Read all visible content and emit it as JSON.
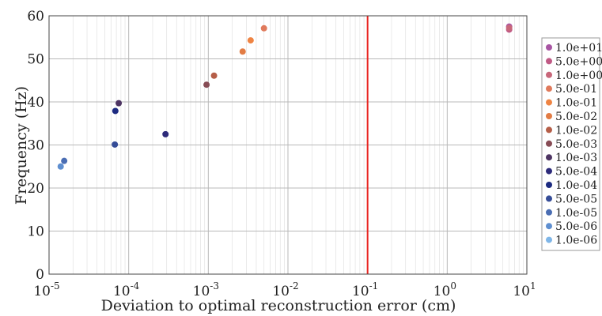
{
  "chart_data": {
    "type": "scatter",
    "xscale": "log",
    "xlabel": "Deviation to optimal reconstruction  error (cm)",
    "ylabel": "Frequency (Hz)",
    "xlim": [
      1e-05,
      10
    ],
    "ylim": [
      0,
      60
    ],
    "grid": true,
    "legend_position": "right",
    "x_ticks": [
      {
        "base": "10",
        "exp": "-5",
        "value": 1e-05
      },
      {
        "base": "10",
        "exp": "-4",
        "value": 0.0001
      },
      {
        "base": "10",
        "exp": "-3",
        "value": 0.001
      },
      {
        "base": "10",
        "exp": "-2",
        "value": 0.01
      },
      {
        "base": "10",
        "exp": "-1",
        "value": 0.1
      },
      {
        "base": "10",
        "exp": "0",
        "value": 1
      },
      {
        "base": "10",
        "exp": "1",
        "value": 10
      }
    ],
    "y_ticks": [
      "0",
      "10",
      "20",
      "30",
      "40",
      "50",
      "60"
    ],
    "reference_line": {
      "x": 0.1,
      "color": "#e8231f"
    },
    "series": [
      {
        "name": "1.0e+01",
        "color": "#a855a3",
        "points": [
          [
            6.0,
            57.5
          ]
        ]
      },
      {
        "name": "5.0e+00",
        "color": "#c05a85",
        "points": [
          [
            6.0,
            56.8
          ]
        ]
      },
      {
        "name": "1.0e+00",
        "color": "#c8677a",
        "points": [
          [
            6.0,
            57.2
          ]
        ]
      },
      {
        "name": "5.0e-01",
        "color": "#e07a5c",
        "points": [
          [
            0.005,
            57.1
          ]
        ]
      },
      {
        "name": "1.0e-01",
        "color": "#ef8443",
        "points": [
          [
            0.0034,
            54.3
          ]
        ]
      },
      {
        "name": "5.0e-02",
        "color": "#e27c44",
        "points": [
          [
            0.0027,
            51.7
          ]
        ]
      },
      {
        "name": "1.0e-02",
        "color": "#b55e48",
        "points": [
          [
            0.00118,
            46.1
          ]
        ]
      },
      {
        "name": "5.0e-03",
        "color": "#874c55",
        "points": [
          [
            0.00095,
            44.0
          ]
        ]
      },
      {
        "name": "1.0e-03",
        "color": "#4d3462",
        "points": [
          [
            7.5e-05,
            39.7
          ]
        ]
      },
      {
        "name": "5.0e-04",
        "color": "#2d2b7a",
        "points": [
          [
            0.00029,
            32.5
          ]
        ]
      },
      {
        "name": "1.0e-04",
        "color": "#1c2a80",
        "points": [
          [
            6.8e-05,
            37.9
          ]
        ]
      },
      {
        "name": "5.0e-05",
        "color": "#354c97",
        "points": [
          [
            6.7e-05,
            30.1
          ]
        ]
      },
      {
        "name": "1.0e-05",
        "color": "#4a6db3",
        "points": [
          [
            1.55e-05,
            26.3
          ]
        ]
      },
      {
        "name": "5.0e-06",
        "color": "#5f8fd0",
        "points": [
          [
            1.4e-05,
            25.0
          ]
        ]
      },
      {
        "name": "1.0e-06",
        "color": "#7fb6e8",
        "points": []
      }
    ]
  }
}
